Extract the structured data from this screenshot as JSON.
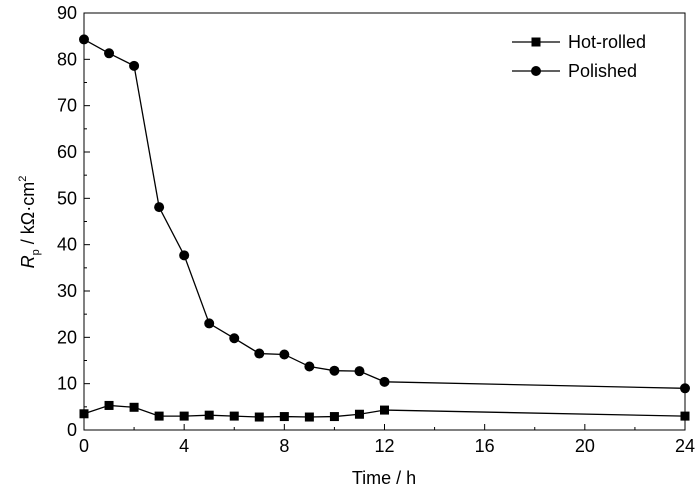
{
  "chart_data": {
    "type": "line",
    "title": "",
    "xlabel": "Time / h",
    "ylabel": {
      "symbol": "R",
      "subscript": "p",
      "unit": " / kΩ·cm",
      "superscript": "2"
    },
    "xlim": [
      0,
      24
    ],
    "ylim": [
      0,
      90
    ],
    "xticks": [
      0,
      4,
      8,
      12,
      16,
      20,
      24
    ],
    "yticks": [
      0,
      10,
      20,
      30,
      40,
      50,
      60,
      70,
      80,
      90
    ],
    "grid": false,
    "legend_position": "top-right",
    "x": [
      0,
      1,
      2,
      3,
      4,
      5,
      6,
      7,
      8,
      9,
      10,
      11,
      12,
      24
    ],
    "series": [
      {
        "name": "Hot-rolled",
        "marker": "square",
        "values": [
          3.5,
          5.3,
          4.9,
          3.0,
          3.0,
          3.2,
          3.0,
          2.8,
          2.9,
          2.8,
          2.9,
          3.4,
          4.3,
          3.0
        ]
      },
      {
        "name": "Polished",
        "marker": "circle",
        "values": [
          84.3,
          81.3,
          78.6,
          48.1,
          37.7,
          23.0,
          19.8,
          16.5,
          16.3,
          13.7,
          12.8,
          12.7,
          10.4,
          9.0
        ]
      }
    ]
  }
}
